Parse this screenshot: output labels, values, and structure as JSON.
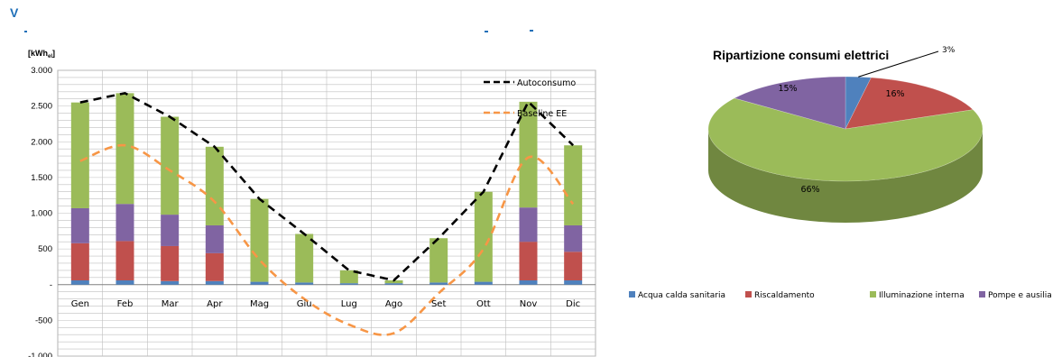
{
  "header": {
    "letter": "V"
  },
  "colors": {
    "acqua": "#4f81bd",
    "riscaldamento": "#c0504d",
    "illuminazione": "#9bbb59",
    "pompe": "#8064a2",
    "autoconsumo": "#000000",
    "baseline": "#f79646"
  },
  "chart_data": [
    {
      "type": "bar",
      "stacked": true,
      "ylabel": "[kWhel]",
      "ylabel_main": "[kWh",
      "ylabel_sub": "el",
      "ylabel_end": "]",
      "ylim": [
        -1000,
        3000
      ],
      "yticks": [
        -1000,
        -500,
        0,
        500,
        1000,
        1500,
        2000,
        2500,
        3000
      ],
      "ytick_labels": [
        "-1.000",
        "-500",
        "-",
        "500",
        "1.000",
        "1.500",
        "2.000",
        "2.500",
        "3.000"
      ],
      "grid": true,
      "legend": "top-right",
      "categories": [
        "Gen",
        "Feb",
        "Mar",
        "Apr",
        "Mag",
        "Giu",
        "Lug",
        "Ago",
        "Set",
        "Ott",
        "Nov",
        "Dic"
      ],
      "series": [
        {
          "name": "Acqua calda sanitaria",
          "values": [
            60,
            60,
            50,
            50,
            40,
            30,
            20,
            20,
            30,
            40,
            60,
            60
          ]
        },
        {
          "name": "Riscaldamento",
          "values": [
            520,
            550,
            490,
            390,
            0,
            0,
            0,
            0,
            0,
            0,
            540,
            400
          ]
        },
        {
          "name": "Illuminazione interna",
          "values": [
            1480,
            1550,
            1370,
            1100,
            1160,
            680,
            180,
            40,
            620,
            1260,
            1480,
            1120
          ]
        },
        {
          "name": "Pompe e ausilia",
          "values": [
            490,
            520,
            440,
            390,
            0,
            0,
            0,
            0,
            0,
            0,
            480,
            370
          ]
        }
      ],
      "lines": [
        {
          "name": "Autoconsumo",
          "values": [
            2550,
            2680,
            2350,
            1930,
            1200,
            710,
            200,
            60,
            650,
            1300,
            2560,
            1950
          ]
        },
        {
          "name": "Baseline EE",
          "values": [
            1730,
            1950,
            1600,
            1160,
            350,
            -200,
            -560,
            -680,
            -120,
            500,
            1780,
            1130
          ]
        }
      ]
    },
    {
      "type": "pie",
      "title": "Ripartizione consumi elettrici",
      "categories": [
        "Acqua calda sanitaria",
        "Riscaldamento",
        "Illuminazione interna",
        "Pompe e ausilia"
      ],
      "values": [
        3,
        16,
        66,
        15
      ],
      "labels": [
        "3%",
        "16%",
        "66%",
        "15%"
      ],
      "legend": "bottom"
    }
  ]
}
